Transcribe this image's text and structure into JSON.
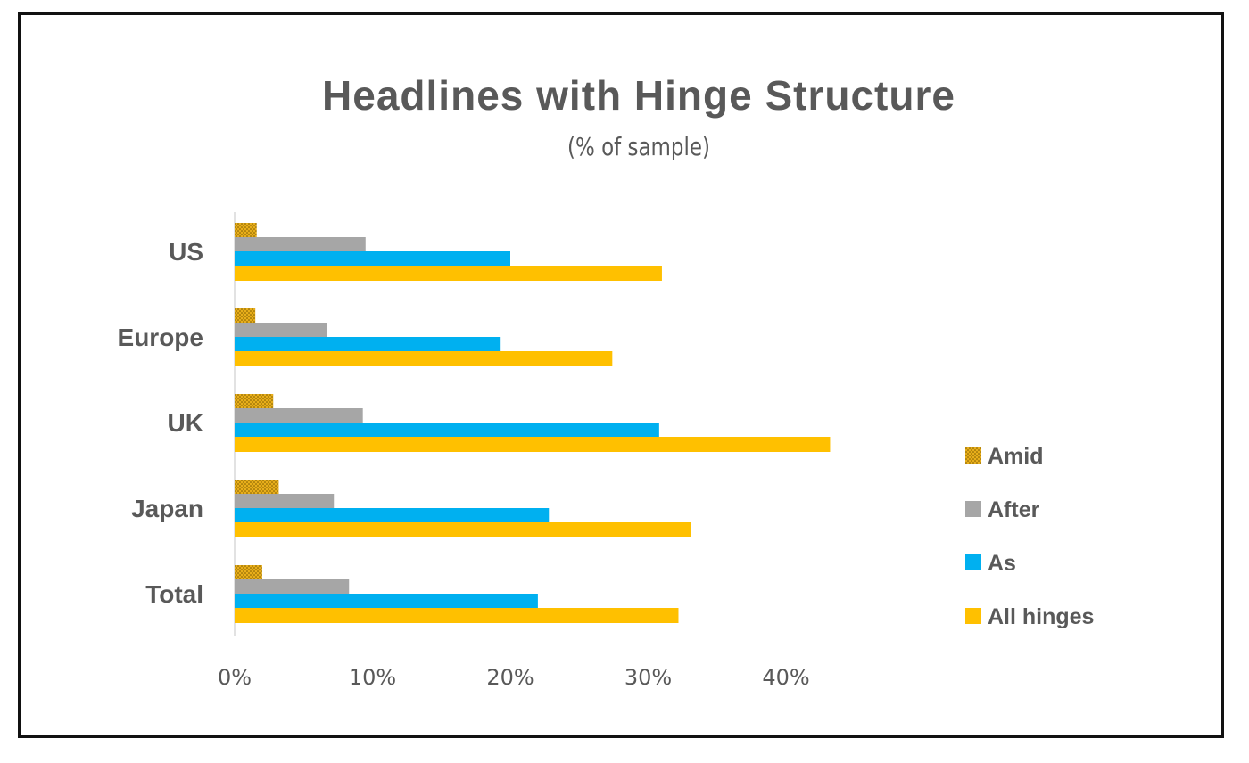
{
  "chart_data": {
    "type": "bar",
    "orientation": "horizontal",
    "title": "Headlines with Hinge Structure",
    "subtitle": "(% of sample)",
    "categories": [
      "US",
      "Europe",
      "UK",
      "Japan",
      "Total"
    ],
    "series": [
      {
        "name": "Amid",
        "values": [
          1.6,
          1.5,
          2.8,
          3.2,
          2.0
        ],
        "color": "#E8AE1A",
        "pattern": "dotted"
      },
      {
        "name": "After",
        "values": [
          9.5,
          6.7,
          9.3,
          7.2,
          8.3
        ],
        "color": "#A6A6A6"
      },
      {
        "name": "As",
        "values": [
          20.0,
          19.3,
          30.8,
          22.8,
          22.0
        ],
        "color": "#00B0F0"
      },
      {
        "name": "All hinges",
        "values": [
          31.0,
          27.4,
          43.2,
          33.1,
          32.2
        ],
        "color": "#FFC000"
      }
    ],
    "xlim": [
      0,
      45
    ],
    "xticks": [
      0,
      10,
      20,
      30,
      40
    ],
    "xtick_labels": [
      "0%",
      "10%",
      "20%",
      "30%",
      "40%"
    ],
    "legend": {
      "placement": "right",
      "order": [
        "Amid",
        "After",
        "As",
        "All hinges"
      ]
    },
    "grid": false
  }
}
